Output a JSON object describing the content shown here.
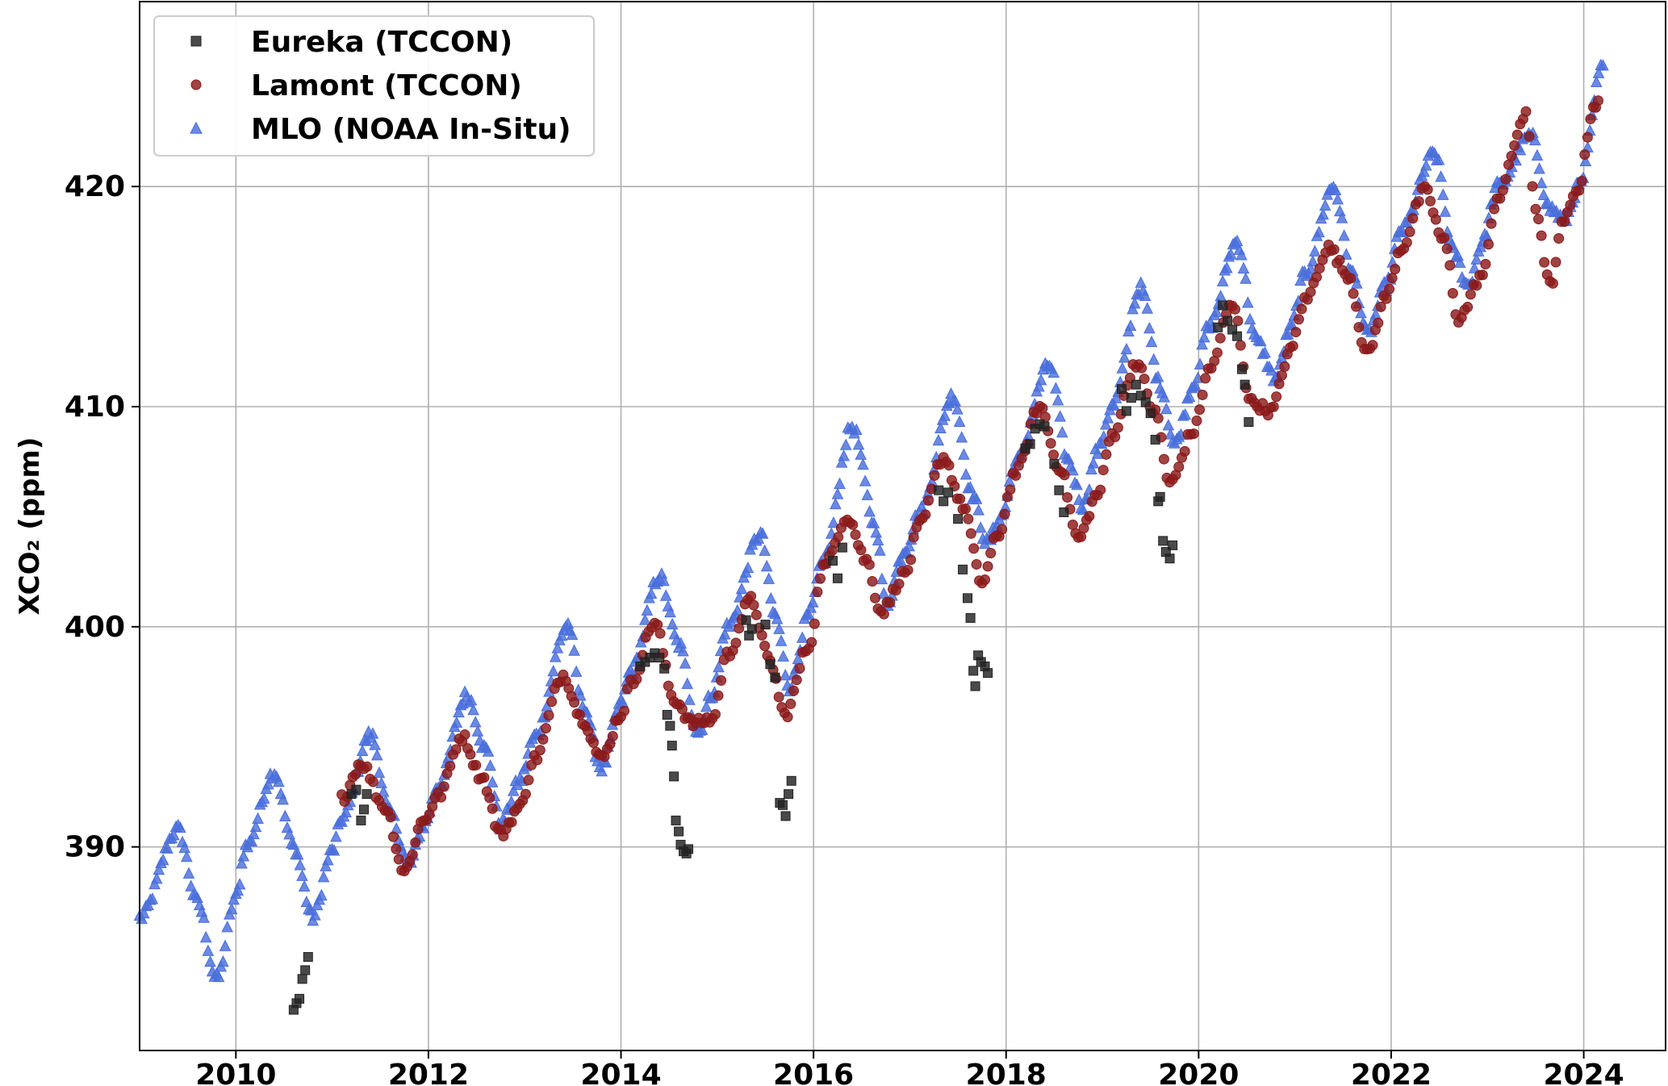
{
  "chart_data": {
    "type": "scatter",
    "title": "",
    "xlabel": "",
    "ylabel": "XCO₂ (ppm)",
    "xlim": [
      2009.0,
      2024.85
    ],
    "ylim": [
      380.75,
      428.4
    ],
    "xticks": [
      2010,
      2012,
      2014,
      2016,
      2018,
      2020,
      2022,
      2024
    ],
    "yticks": [
      390,
      400,
      410,
      420
    ],
    "grid": true,
    "legend_position": "top-left",
    "series": [
      {
        "name": "Eureka (TCCON)",
        "marker": "square",
        "color": "#222222",
        "points": [
          [
            2010.6,
            382.6
          ],
          [
            2010.63,
            382.9
          ],
          [
            2010.66,
            383.1
          ],
          [
            2010.69,
            384.0
          ],
          [
            2010.72,
            384.4
          ],
          [
            2010.75,
            385.0
          ],
          [
            2011.2,
            392.4
          ],
          [
            2011.25,
            392.6
          ],
          [
            2011.3,
            391.2
          ],
          [
            2011.33,
            391.7
          ],
          [
            2011.36,
            392.4
          ],
          [
            2014.2,
            398.2
          ],
          [
            2014.25,
            398.4
          ],
          [
            2014.3,
            398.6
          ],
          [
            2014.35,
            398.8
          ],
          [
            2014.4,
            398.6
          ],
          [
            2014.45,
            398.1
          ],
          [
            2014.48,
            396.0
          ],
          [
            2014.51,
            395.5
          ],
          [
            2014.53,
            394.6
          ],
          [
            2014.55,
            393.2
          ],
          [
            2014.57,
            391.2
          ],
          [
            2014.6,
            390.7
          ],
          [
            2014.62,
            390.1
          ],
          [
            2014.65,
            389.8
          ],
          [
            2014.68,
            389.7
          ],
          [
            2014.7,
            389.9
          ],
          [
            2015.3,
            400.3
          ],
          [
            2015.33,
            399.6
          ],
          [
            2015.36,
            399.9
          ],
          [
            2015.5,
            400.1
          ],
          [
            2015.55,
            398.3
          ],
          [
            2015.6,
            397.7
          ],
          [
            2015.65,
            392.0
          ],
          [
            2015.68,
            391.9
          ],
          [
            2015.71,
            391.4
          ],
          [
            2015.74,
            392.4
          ],
          [
            2015.77,
            393.0
          ],
          [
            2016.2,
            403.0
          ],
          [
            2016.25,
            402.2
          ],
          [
            2016.3,
            403.6
          ],
          [
            2017.3,
            406.2
          ],
          [
            2017.35,
            405.7
          ],
          [
            2017.4,
            406.1
          ],
          [
            2017.5,
            404.9
          ],
          [
            2017.55,
            402.6
          ],
          [
            2017.6,
            401.3
          ],
          [
            2017.63,
            400.4
          ],
          [
            2017.66,
            398.0
          ],
          [
            2017.68,
            397.3
          ],
          [
            2017.71,
            398.7
          ],
          [
            2017.74,
            398.4
          ],
          [
            2017.78,
            398.2
          ],
          [
            2017.81,
            397.9
          ],
          [
            2018.2,
            408.1
          ],
          [
            2018.25,
            408.3
          ],
          [
            2018.3,
            409.0
          ],
          [
            2018.35,
            409.2
          ],
          [
            2018.4,
            409.1
          ],
          [
            2018.5,
            407.4
          ],
          [
            2018.55,
            406.2
          ],
          [
            2018.6,
            405.2
          ],
          [
            2019.2,
            410.8
          ],
          [
            2019.25,
            409.8
          ],
          [
            2019.3,
            410.4
          ],
          [
            2019.35,
            411.0
          ],
          [
            2019.4,
            410.5
          ],
          [
            2019.45,
            410.2
          ],
          [
            2019.5,
            409.7
          ],
          [
            2019.55,
            408.5
          ],
          [
            2019.58,
            405.7
          ],
          [
            2019.6,
            405.9
          ],
          [
            2019.63,
            403.9
          ],
          [
            2019.66,
            403.4
          ],
          [
            2019.7,
            403.1
          ],
          [
            2019.73,
            403.7
          ],
          [
            2020.2,
            413.6
          ],
          [
            2020.25,
            414.6
          ],
          [
            2020.3,
            413.9
          ],
          [
            2020.35,
            413.5
          ],
          [
            2020.4,
            413.2
          ],
          [
            2020.45,
            411.7
          ],
          [
            2020.48,
            411.0
          ],
          [
            2020.52,
            409.3
          ]
        ]
      },
      {
        "name": "Lamont (TCCON)",
        "marker": "circle",
        "color": "#8b1a1a",
        "anchors": [
          [
            2011.1,
            392.2
          ],
          [
            2011.3,
            393.8
          ],
          [
            2011.55,
            391.8
          ],
          [
            2011.75,
            388.9
          ],
          [
            2011.95,
            391.2
          ],
          [
            2012.1,
            392.3
          ],
          [
            2012.35,
            395.0
          ],
          [
            2012.55,
            393.2
          ],
          [
            2012.75,
            390.6
          ],
          [
            2012.95,
            391.8
          ],
          [
            2013.1,
            394.0
          ],
          [
            2013.4,
            397.8
          ],
          [
            2013.6,
            395.8
          ],
          [
            2013.8,
            394.0
          ],
          [
            2014.0,
            396.0
          ],
          [
            2014.1,
            397.4
          ],
          [
            2014.35,
            400.2
          ],
          [
            2014.55,
            396.7
          ],
          [
            2014.75,
            395.6
          ],
          [
            2014.95,
            395.8
          ],
          [
            2015.1,
            398.7
          ],
          [
            2015.35,
            401.2
          ],
          [
            2015.55,
            398.4
          ],
          [
            2015.7,
            396.0
          ],
          [
            2015.95,
            399.1
          ],
          [
            2016.1,
            402.7
          ],
          [
            2016.35,
            405.0
          ],
          [
            2016.55,
            403.0
          ],
          [
            2016.7,
            400.7
          ],
          [
            2016.95,
            402.4
          ],
          [
            2017.1,
            404.6
          ],
          [
            2017.35,
            407.7
          ],
          [
            2017.55,
            405.5
          ],
          [
            2017.75,
            402.0
          ],
          [
            2017.9,
            404.0
          ],
          [
            2018.1,
            407.0
          ],
          [
            2018.35,
            410.0
          ],
          [
            2018.55,
            407.3
          ],
          [
            2018.75,
            404.0
          ],
          [
            2018.95,
            406.0
          ],
          [
            2019.1,
            408.7
          ],
          [
            2019.35,
            412.0
          ],
          [
            2019.55,
            409.7
          ],
          [
            2019.7,
            406.5
          ],
          [
            2019.95,
            408.9
          ],
          [
            2020.1,
            411.6
          ],
          [
            2020.35,
            414.6
          ],
          [
            2020.55,
            410.2
          ],
          [
            2020.75,
            409.8
          ],
          [
            2020.95,
            412.5
          ],
          [
            2021.1,
            414.8
          ],
          [
            2021.35,
            417.2
          ],
          [
            2021.55,
            416.0
          ],
          [
            2021.75,
            412.4
          ],
          [
            2021.95,
            415.0
          ],
          [
            2022.1,
            417.2
          ],
          [
            2022.35,
            419.8
          ],
          [
            2022.55,
            417.5
          ],
          [
            2022.7,
            414.0
          ],
          [
            2022.95,
            416.0
          ],
          [
            2023.1,
            419.5
          ],
          [
            2023.4,
            423.2
          ],
          [
            2023.5,
            419.0
          ],
          [
            2023.65,
            415.5
          ],
          [
            2023.8,
            418.5
          ],
          [
            2023.95,
            420.0
          ],
          [
            2024.1,
            423.6
          ],
          [
            2024.15,
            423.9
          ]
        ]
      },
      {
        "name": "MLO (NOAA In-Situ)",
        "marker": "triangle",
        "color": "#4a6fdc",
        "anchors": [
          [
            2009.0,
            386.8
          ],
          [
            2009.4,
            390.8
          ],
          [
            2009.6,
            387.5
          ],
          [
            2009.8,
            384.0
          ],
          [
            2010.0,
            387.7
          ],
          [
            2010.1,
            390.0
          ],
          [
            2010.4,
            393.4
          ],
          [
            2010.6,
            390.0
          ],
          [
            2010.8,
            386.8
          ],
          [
            2011.0,
            389.8
          ],
          [
            2011.1,
            391.3
          ],
          [
            2011.4,
            395.1
          ],
          [
            2011.6,
            391.5
          ],
          [
            2011.8,
            389.2
          ],
          [
            2011.95,
            391.0
          ],
          [
            2012.1,
            392.8
          ],
          [
            2012.4,
            396.9
          ],
          [
            2012.6,
            394.4
          ],
          [
            2012.75,
            391.0
          ],
          [
            2012.95,
            393.0
          ],
          [
            2013.1,
            395.0
          ],
          [
            2013.45,
            400.1
          ],
          [
            2013.6,
            396.5
          ],
          [
            2013.8,
            393.6
          ],
          [
            2014.0,
            396.5
          ],
          [
            2014.1,
            398.0
          ],
          [
            2014.4,
            402.3
          ],
          [
            2014.6,
            399.2
          ],
          [
            2014.8,
            395.2
          ],
          [
            2014.95,
            397.0
          ],
          [
            2015.1,
            400.0
          ],
          [
            2015.45,
            404.2
          ],
          [
            2015.6,
            400.5
          ],
          [
            2015.75,
            397.3
          ],
          [
            2015.95,
            400.5
          ],
          [
            2016.1,
            403.0
          ],
          [
            2016.4,
            409.1
          ],
          [
            2016.65,
            404.5
          ],
          [
            2016.75,
            401.0
          ],
          [
            2016.95,
            403.5
          ],
          [
            2017.1,
            405.2
          ],
          [
            2017.45,
            410.5
          ],
          [
            2017.65,
            406.0
          ],
          [
            2017.8,
            403.8
          ],
          [
            2017.95,
            405.0
          ],
          [
            2018.1,
            407.5
          ],
          [
            2018.45,
            411.9
          ],
          [
            2018.65,
            407.5
          ],
          [
            2018.8,
            405.5
          ],
          [
            2018.95,
            408.0
          ],
          [
            2019.1,
            410.0
          ],
          [
            2019.4,
            415.4
          ],
          [
            2019.6,
            411.0
          ],
          [
            2019.75,
            408.3
          ],
          [
            2019.95,
            411.0
          ],
          [
            2020.1,
            413.6
          ],
          [
            2020.4,
            417.5
          ],
          [
            2020.6,
            413.0
          ],
          [
            2020.8,
            411.3
          ],
          [
            2020.95,
            413.5
          ],
          [
            2021.1,
            416.0
          ],
          [
            2021.4,
            420.0
          ],
          [
            2021.6,
            416.0
          ],
          [
            2021.75,
            413.3
          ],
          [
            2021.95,
            415.5
          ],
          [
            2022.1,
            418.0
          ],
          [
            2022.45,
            421.5
          ],
          [
            2022.65,
            417.0
          ],
          [
            2022.8,
            415.5
          ],
          [
            2022.95,
            417.5
          ],
          [
            2023.1,
            420.0
          ],
          [
            2023.45,
            422.3
          ],
          [
            2023.65,
            419.0
          ],
          [
            2023.8,
            418.5
          ],
          [
            2023.95,
            420.0
          ],
          [
            2024.2,
            425.5
          ]
        ]
      }
    ]
  }
}
